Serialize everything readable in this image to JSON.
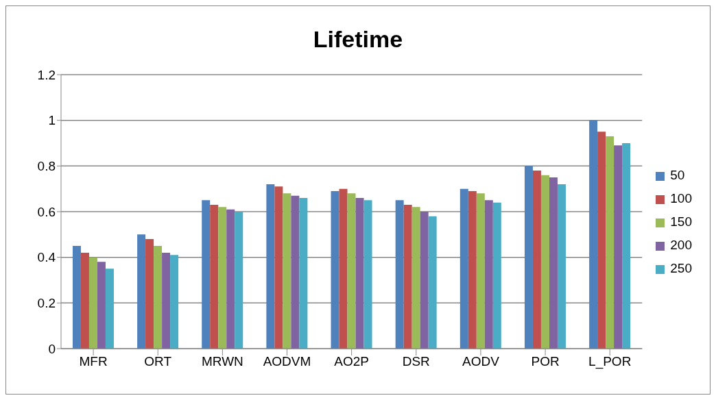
{
  "chart_data": {
    "type": "bar",
    "title": "Lifetime",
    "categories": [
      "MFR",
      "ORT",
      "MRWN",
      "AODVM",
      "AO2P",
      "DSR",
      "AODV",
      "POR",
      "L_POR"
    ],
    "series": [
      {
        "name": "50",
        "color": "#4f81bd",
        "values": [
          0.45,
          0.5,
          0.65,
          0.72,
          0.69,
          0.65,
          0.7,
          0.8,
          1.0
        ]
      },
      {
        "name": "100",
        "color": "#c0504d",
        "values": [
          0.42,
          0.48,
          0.63,
          0.71,
          0.7,
          0.63,
          0.69,
          0.78,
          0.95
        ]
      },
      {
        "name": "150",
        "color": "#9bbb59",
        "values": [
          0.4,
          0.45,
          0.62,
          0.68,
          0.68,
          0.62,
          0.68,
          0.76,
          0.93
        ]
      },
      {
        "name": "200",
        "color": "#8064a2",
        "values": [
          0.38,
          0.42,
          0.61,
          0.67,
          0.66,
          0.6,
          0.65,
          0.75,
          0.89
        ]
      },
      {
        "name": "250",
        "color": "#4bacc6",
        "values": [
          0.35,
          0.41,
          0.6,
          0.66,
          0.65,
          0.58,
          0.64,
          0.72,
          0.9
        ]
      }
    ],
    "ylim": [
      0,
      1.2
    ],
    "yticks": [
      0,
      0.2,
      0.4,
      0.6,
      0.8,
      1,
      1.2
    ],
    "grid": "y",
    "legend": "right"
  }
}
